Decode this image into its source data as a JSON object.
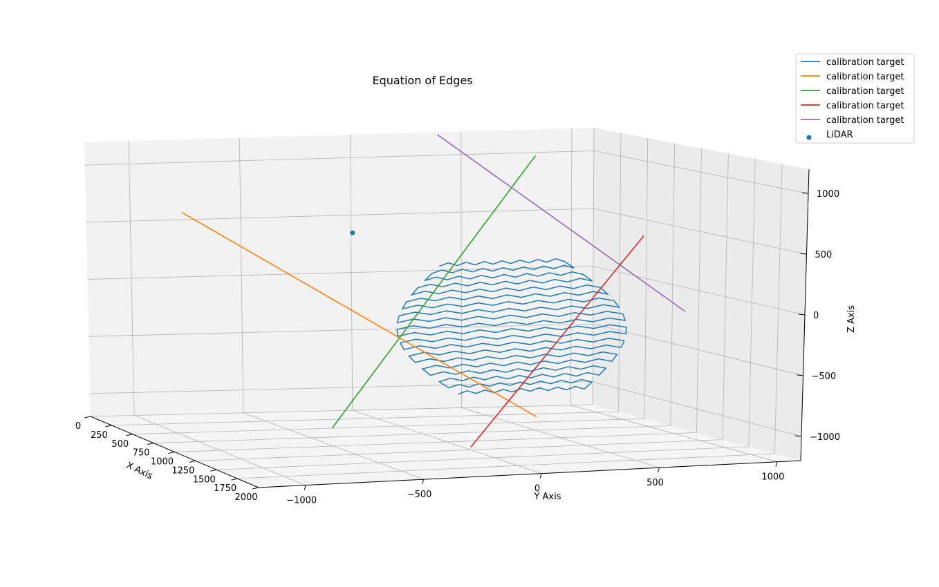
{
  "chart_data": {
    "type": "line3d",
    "title": "Equation of Edges",
    "xlabel": "X Axis",
    "ylabel": "Y Axis",
    "zlabel": "Z Axis",
    "xlim": [
      0,
      2000
    ],
    "ylim": [
      -1200,
      1100
    ],
    "zlim": [
      -1200,
      1200
    ],
    "x_ticks": [
      {
        "value": 0,
        "label": "0"
      },
      {
        "value": 250,
        "label": "250"
      },
      {
        "value": 500,
        "label": "500"
      },
      {
        "value": 750,
        "label": "750"
      },
      {
        "value": 1000,
        "label": "1000"
      },
      {
        "value": 1250,
        "label": "1250"
      },
      {
        "value": 1500,
        "label": "1500"
      },
      {
        "value": 1750,
        "label": "1750"
      },
      {
        "value": 2000,
        "label": "2000"
      }
    ],
    "y_ticks": [
      {
        "value": -1000,
        "label": "−1000"
      },
      {
        "value": -500,
        "label": "−500"
      },
      {
        "value": 0,
        "label": "0"
      },
      {
        "value": 500,
        "label": "500"
      },
      {
        "value": 1000,
        "label": "1000"
      }
    ],
    "z_ticks": [
      {
        "value": -1000,
        "label": "−1000"
      },
      {
        "value": -500,
        "label": "−500"
      },
      {
        "value": 0,
        "label": "0"
      },
      {
        "value": 500,
        "label": "500"
      },
      {
        "value": 1000,
        "label": "1000"
      }
    ],
    "grid": true,
    "legend_position": "top-right",
    "series": [
      {
        "name": "calibration target",
        "kind": "scan",
        "color": "#1f77b4",
        "x_range": [
          1100,
          1900
        ],
        "y_range": [
          -300,
          700
        ],
        "z_range": [
          -650,
          450
        ],
        "rows": 20
      },
      {
        "name": "calibration target",
        "kind": "line",
        "color": "#ff7f0e",
        "points": [
          [
            300,
            -900,
            600
          ],
          [
            1700,
            100,
            -750
          ]
        ]
      },
      {
        "name": "calibration target",
        "kind": "line",
        "color": "#2ca02c",
        "points": [
          [
            1500,
            -700,
            -850
          ],
          [
            300,
            700,
            1000
          ]
        ]
      },
      {
        "name": "calibration target",
        "kind": "line",
        "color": "#d62728",
        "points": [
          [
            2000,
            -300,
            -900
          ],
          [
            600,
            1050,
            420
          ]
        ]
      },
      {
        "name": "calibration target",
        "kind": "line",
        "color": "#9467bd",
        "points": [
          [
            200,
            300,
            1150
          ],
          [
            1000,
            1050,
            -100
          ]
        ]
      },
      {
        "name": "LiDAR",
        "kind": "point",
        "color": "#1f77b4",
        "points": [
          [
            0,
            0,
            0
          ]
        ]
      }
    ]
  }
}
